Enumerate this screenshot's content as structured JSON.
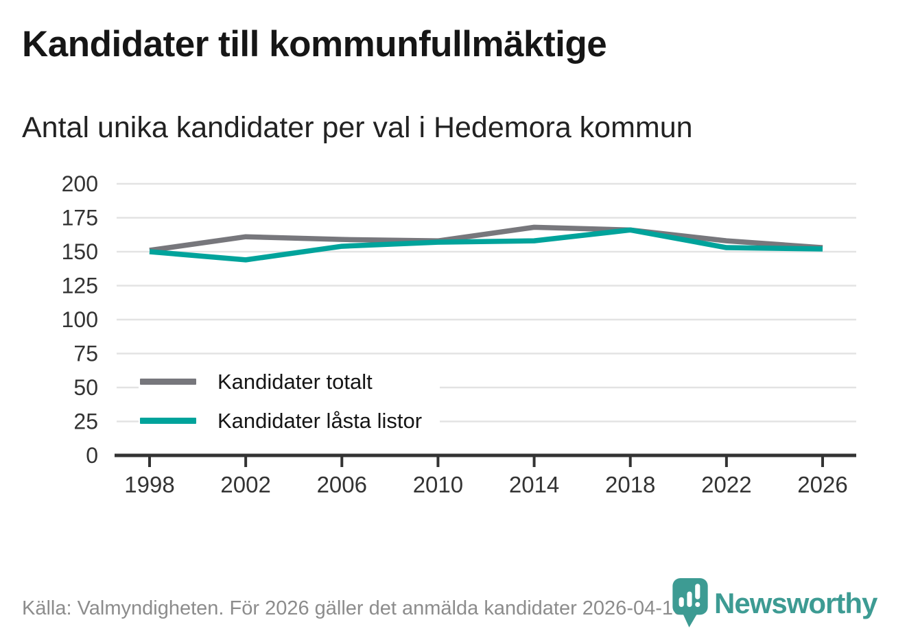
{
  "header": {
    "title": "Kandidater till kommunfullmäktige",
    "subtitle": "Antal unika kandidater per val i Hedemora kommun"
  },
  "chart_data": {
    "type": "line",
    "title": "Kandidater till kommunfullmäktige",
    "subtitle": "Antal unika kandidater per val i Hedemora kommun",
    "categories": [
      1998,
      2002,
      2006,
      2010,
      2014,
      2018,
      2022,
      2026
    ],
    "series": [
      {
        "name": "Kandidater totalt",
        "color": "#77777c",
        "values": [
          151,
          161,
          159,
          158,
          168,
          166,
          158,
          153
        ]
      },
      {
        "name": "Kandidater låsta listor",
        "color": "#00a39b",
        "values": [
          150,
          144,
          154,
          157,
          158,
          166,
          153,
          152
        ]
      }
    ],
    "ylim": [
      0,
      200
    ],
    "yticks": [
      0,
      25,
      50,
      75,
      100,
      125,
      150,
      175,
      200
    ],
    "grid": "horizontal",
    "legend_position": "inside-bottom-left",
    "colors": {
      "grid": "#e3e3e3",
      "axis": "#333333",
      "tick_label": "#333333"
    }
  },
  "footer": {
    "source": "Källa: Valmyndigheten. För 2026 gäller det anmälda kandidater 2026-04-10.",
    "brand": "Newsworthy",
    "brand_color": "#3d9b93"
  },
  "icons": {
    "logo": "newsworthy-pin-bar-chart-icon"
  }
}
